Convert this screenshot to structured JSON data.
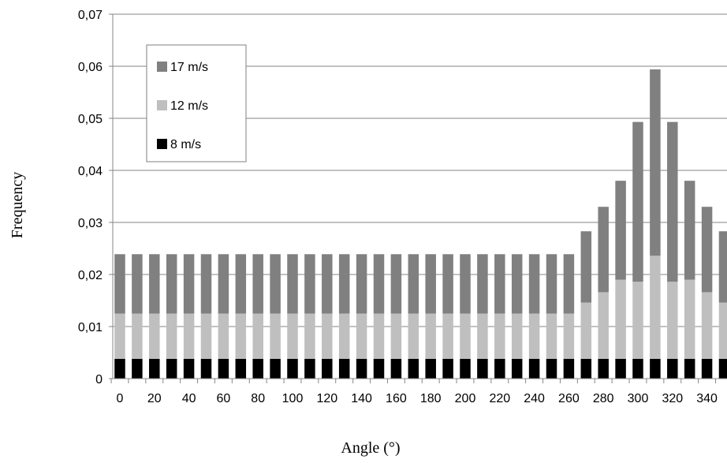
{
  "chart_data": {
    "type": "bar",
    "stacked": true,
    "xlabel": "Angle (°)",
    "ylabel": "Frequency",
    "ylim": [
      0,
      0.07
    ],
    "y_ticks": [
      "0",
      "0,01",
      "0,02",
      "0,03",
      "0,04",
      "0,05",
      "0,06",
      "0,07"
    ],
    "y_tick_values": [
      0,
      0.01,
      0.02,
      0.03,
      0.04,
      0.05,
      0.06,
      0.07
    ],
    "x_tick_labels": [
      "0",
      "20",
      "40",
      "60",
      "80",
      "100",
      "120",
      "140",
      "160",
      "180",
      "200",
      "220",
      "240",
      "260",
      "280",
      "300",
      "320",
      "340"
    ],
    "grid": "horizontal",
    "legend_position": "top-left",
    "categories": [
      0,
      10,
      20,
      30,
      40,
      50,
      60,
      70,
      80,
      90,
      100,
      110,
      120,
      130,
      140,
      150,
      160,
      170,
      180,
      190,
      200,
      210,
      220,
      230,
      240,
      250,
      260,
      270,
      280,
      290,
      300,
      310,
      320,
      330,
      340,
      350
    ],
    "series": [
      {
        "name": "8 m/s",
        "color": "#000000",
        "values": [
          0.0038,
          0.0038,
          0.0038,
          0.0038,
          0.0038,
          0.0038,
          0.0038,
          0.0038,
          0.0038,
          0.0038,
          0.0038,
          0.0038,
          0.0038,
          0.0038,
          0.0038,
          0.0038,
          0.0038,
          0.0038,
          0.0038,
          0.0038,
          0.0038,
          0.0038,
          0.0038,
          0.0038,
          0.0038,
          0.0038,
          0.0038,
          0.0038,
          0.0038,
          0.0038,
          0.0038,
          0.0038,
          0.0038,
          0.0038,
          0.0038,
          0.0038
        ]
      },
      {
        "name": "12 m/s",
        "color": "#bfbfbf",
        "values": [
          0.0087,
          0.0087,
          0.0087,
          0.0087,
          0.0087,
          0.0087,
          0.0087,
          0.0087,
          0.0087,
          0.0087,
          0.0087,
          0.0087,
          0.0087,
          0.0087,
          0.0087,
          0.0087,
          0.0087,
          0.0087,
          0.0087,
          0.0087,
          0.0087,
          0.0087,
          0.0087,
          0.0087,
          0.0087,
          0.0087,
          0.0087,
          0.0108,
          0.0128,
          0.0152,
          0.0148,
          0.0198,
          0.0148,
          0.0152,
          0.0128,
          0.0108
        ]
      },
      {
        "name": "17 m/s",
        "color": "#808080",
        "values": [
          0.0114,
          0.0114,
          0.0114,
          0.0114,
          0.0114,
          0.0114,
          0.0114,
          0.0114,
          0.0114,
          0.0114,
          0.0114,
          0.0114,
          0.0114,
          0.0114,
          0.0114,
          0.0114,
          0.0114,
          0.0114,
          0.0114,
          0.0114,
          0.0114,
          0.0114,
          0.0114,
          0.0114,
          0.0114,
          0.0114,
          0.0114,
          0.0137,
          0.0164,
          0.019,
          0.0307,
          0.0358,
          0.0307,
          0.019,
          0.0164,
          0.0137
        ]
      }
    ]
  }
}
